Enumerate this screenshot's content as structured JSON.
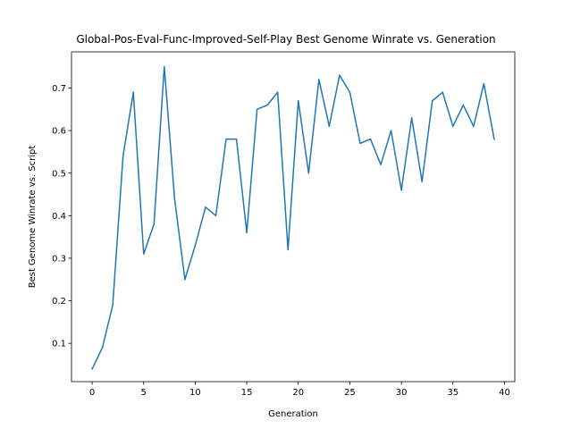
{
  "chart_data": {
    "type": "line",
    "title": "Global-Pos-Eval-Func-Improved-Self-Play Best Genome Winrate vs. Generation",
    "xlabel": "Generation",
    "ylabel": "Best Genome Winrate vs. Script",
    "xlim": [
      -2,
      41
    ],
    "ylim": [
      0.01,
      0.785
    ],
    "xticks": [
      0,
      5,
      10,
      15,
      20,
      25,
      30,
      35,
      40
    ],
    "yticks": [
      0.1,
      0.2,
      0.3,
      0.4,
      0.5,
      0.6,
      0.7
    ],
    "grid": false,
    "legend": "none",
    "series": [
      {
        "color": "#1f77b4",
        "x": [
          0,
          1,
          2,
          3,
          4,
          5,
          6,
          7,
          8,
          9,
          10,
          11,
          12,
          13,
          14,
          15,
          16,
          17,
          18,
          19,
          20,
          21,
          22,
          23,
          24,
          25,
          26,
          27,
          28,
          29,
          30,
          31,
          32,
          33,
          34,
          35,
          36,
          37,
          38,
          39
        ],
        "y": [
          0.04,
          0.09,
          0.19,
          0.54,
          0.69,
          0.31,
          0.38,
          0.75,
          0.44,
          0.25,
          0.33,
          0.42,
          0.4,
          0.58,
          0.58,
          0.36,
          0.65,
          0.66,
          0.69,
          0.32,
          0.67,
          0.5,
          0.72,
          0.61,
          0.73,
          0.69,
          0.57,
          0.58,
          0.52,
          0.6,
          0.46,
          0.63,
          0.48,
          0.67,
          0.69,
          0.61,
          0.66,
          0.61,
          0.71,
          0.58
        ]
      }
    ]
  }
}
